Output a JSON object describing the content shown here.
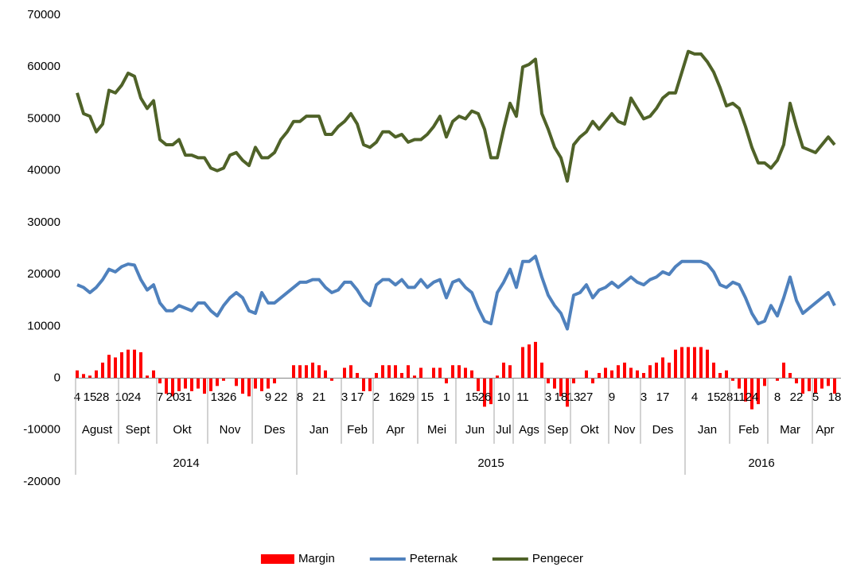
{
  "chart_data": {
    "type": "bar-line",
    "categories": [
      "4",
      null,
      "15",
      null,
      "28",
      null,
      null,
      "10",
      null,
      "24",
      null,
      null,
      null,
      "7",
      null,
      "20",
      null,
      "31",
      null,
      null,
      null,
      null,
      "13",
      null,
      "26",
      null,
      null,
      null,
      null,
      null,
      "9",
      null,
      "22",
      null,
      null,
      "8",
      null,
      null,
      "21",
      null,
      null,
      null,
      "3",
      null,
      "17",
      null,
      null,
      "2",
      null,
      null,
      "16",
      null,
      "29",
      null,
      null,
      "15",
      null,
      null,
      "1",
      null,
      null,
      null,
      "15",
      null,
      "26",
      null,
      null,
      "10",
      null,
      null,
      "11",
      null,
      null,
      null,
      "3",
      null,
      "18",
      null,
      "13",
      null,
      "27",
      null,
      null,
      null,
      "9",
      null,
      null,
      null,
      null,
      "3",
      null,
      null,
      "17",
      null,
      null,
      null,
      null,
      "4",
      null,
      null,
      "15",
      null,
      "28",
      null,
      "11",
      null,
      "24",
      null,
      null,
      null,
      "8",
      null,
      null,
      "22",
      null,
      null,
      "5",
      null,
      null,
      "18"
    ],
    "months": [
      "Agust",
      null,
      null,
      null,
      null,
      null,
      null,
      "Sept",
      null,
      null,
      null,
      null,
      null,
      "Okt",
      null,
      null,
      null,
      null,
      null,
      null,
      null,
      "Nov",
      null,
      null,
      null,
      null,
      null,
      null,
      "Des",
      null,
      null,
      null,
      null,
      null,
      null,
      "Jan",
      null,
      null,
      null,
      null,
      null,
      null,
      "Feb",
      null,
      null,
      null,
      null,
      "Apr",
      null,
      null,
      null,
      null,
      null,
      null,
      "Mei",
      null,
      null,
      null,
      null,
      null,
      "Jun",
      null,
      null,
      null,
      null,
      null,
      "Jul",
      null,
      null,
      "Ags",
      null,
      null,
      null,
      null,
      "Sep",
      null,
      null,
      null,
      "Okt",
      null,
      null,
      null,
      null,
      null,
      "Nov",
      null,
      null,
      null,
      null,
      "Des",
      null,
      null,
      null,
      null,
      null,
      null,
      "Jan",
      null,
      null,
      null,
      null,
      null,
      null,
      "Feb",
      null,
      null,
      null,
      null,
      null,
      "Mar",
      null,
      null,
      null,
      null,
      null,
      null,
      "Apr",
      null,
      null,
      null
    ],
    "years": [
      "2014",
      null,
      null,
      null,
      null,
      null,
      null,
      null,
      null,
      null,
      null,
      null,
      null,
      null,
      null,
      null,
      null,
      null,
      null,
      null,
      null,
      null,
      null,
      null,
      null,
      null,
      null,
      null,
      null,
      null,
      null,
      null,
      null,
      null,
      null,
      "2015",
      null,
      null,
      null,
      null,
      null,
      null,
      null,
      null,
      null,
      null,
      null,
      null,
      null,
      null,
      null,
      null,
      null,
      null,
      null,
      null,
      null,
      null,
      null,
      null,
      null,
      null,
      null,
      null,
      null,
      null,
      null,
      null,
      null,
      null,
      null,
      null,
      null,
      null,
      null,
      null,
      null,
      null,
      null,
      null,
      null,
      null,
      null,
      null,
      null,
      null,
      null,
      null,
      null,
      null,
      null,
      null,
      null,
      null,
      null,
      null,
      "2016",
      null,
      null,
      null,
      null,
      null,
      null,
      null,
      null,
      null,
      null,
      null,
      null,
      null,
      null,
      null,
      null,
      null,
      null,
      null,
      null,
      null,
      null,
      null
    ],
    "series": [
      {
        "name": "Margin",
        "type": "bar",
        "color": "#ff0000",
        "values": [
          1500,
          800,
          500,
          1500,
          3000,
          4500,
          4000,
          5000,
          5500,
          5500,
          5000,
          500,
          1500,
          -1000,
          -3000,
          -3500,
          -2500,
          -2000,
          -2500,
          -2000,
          -3000,
          -2500,
          -1500,
          -500,
          0,
          -1500,
          -3000,
          -3500,
          -2000,
          -2500,
          -2000,
          -1000,
          0,
          0,
          2500,
          2500,
          2500,
          3000,
          2500,
          1500,
          -500,
          0,
          2000,
          2500,
          1000,
          -2500,
          -2500,
          1000,
          2500,
          2500,
          2500,
          1000,
          2500,
          500,
          2000,
          0,
          2000,
          2000,
          -1000,
          2500,
          2500,
          2000,
          1500,
          -2500,
          -5500,
          -5000,
          500,
          3000,
          2500,
          0,
          6000,
          6500,
          7000,
          3000,
          -1000,
          -2000,
          -3500,
          -5500,
          -1000,
          0,
          1500,
          -1000,
          1000,
          2000,
          1500,
          2500,
          3000,
          2000,
          1500,
          1000,
          2500,
          3000,
          4000,
          3000,
          5500,
          6000,
          6000,
          6000,
          6000,
          5500,
          3000,
          1000,
          1500,
          -500,
          -2000,
          -4500,
          -6000,
          -5000,
          -1500,
          0,
          -500,
          3000,
          1000,
          -1000,
          -3000,
          -2500,
          -3000,
          -2000,
          -1500,
          -3000
        ]
      },
      {
        "name": "Peternak",
        "type": "line",
        "color": "#4f81bd",
        "values": [
          18000,
          17500,
          16500,
          17500,
          19000,
          21000,
          20500,
          21500,
          22000,
          21800,
          19000,
          17000,
          18000,
          14500,
          13000,
          13000,
          14000,
          13500,
          13000,
          14500,
          14500,
          13000,
          12000,
          14000,
          15500,
          16500,
          15500,
          13000,
          12500,
          16500,
          14500,
          14500,
          15500,
          16500,
          17500,
          18500,
          18500,
          19000,
          19000,
          17500,
          16500,
          17000,
          18500,
          18500,
          17000,
          15000,
          14000,
          18000,
          19000,
          19000,
          18000,
          19000,
          17500,
          17500,
          19000,
          17500,
          18500,
          19000,
          15500,
          18500,
          19000,
          17500,
          16500,
          13500,
          11000,
          10500,
          16500,
          18500,
          21000,
          17500,
          22500,
          22500,
          23500,
          19500,
          16000,
          14000,
          12500,
          9500,
          16000,
          16500,
          18000,
          15500,
          17000,
          17500,
          18500,
          17500,
          18500,
          19500,
          18500,
          18000,
          19000,
          19500,
          20500,
          20000,
          21500,
          22500,
          22500,
          22500,
          22500,
          22000,
          20500,
          18000,
          17500,
          18500,
          18000,
          15500,
          12500,
          10500,
          11000,
          14000,
          12000,
          15500,
          19500,
          15000,
          12500,
          13500,
          14500,
          15500,
          16500,
          14000
        ]
      },
      {
        "name": "Pengecer",
        "type": "line",
        "color": "#4f6228",
        "values": [
          55000,
          51000,
          50500,
          47500,
          49000,
          55500,
          55000,
          56500,
          58800,
          58200,
          54000,
          52000,
          53500,
          46000,
          45000,
          45000,
          46000,
          43000,
          43000,
          42500,
          42500,
          40500,
          40000,
          40500,
          43000,
          43500,
          42000,
          41000,
          44500,
          42500,
          42500,
          43500,
          46000,
          47500,
          49500,
          49500,
          50500,
          50500,
          50500,
          47000,
          47000,
          48500,
          49500,
          51000,
          49000,
          45000,
          44500,
          45500,
          47500,
          47500,
          46500,
          47000,
          45500,
          46000,
          46000,
          47000,
          48500,
          50500,
          46500,
          49500,
          50500,
          50000,
          51500,
          51000,
          48000,
          42500,
          42500,
          48000,
          53000,
          50500,
          60000,
          60500,
          61500,
          51000,
          48000,
          44500,
          42500,
          38000,
          45000,
          46500,
          47500,
          49500,
          48000,
          49500,
          51000,
          49500,
          49000,
          54000,
          52000,
          50000,
          50500,
          52000,
          54000,
          55000,
          55000,
          59000,
          63000,
          62500,
          62500,
          61000,
          59000,
          56000,
          52500,
          53000,
          52000,
          48500,
          44500,
          41500,
          41500,
          40500,
          42000,
          45000,
          53000,
          48500,
          44500,
          44000,
          43500,
          45000,
          46500,
          45000
        ]
      }
    ],
    "ylim": [
      -20000,
      70000
    ],
    "yticks": [
      -20000,
      -10000,
      0,
      10000,
      20000,
      30000,
      40000,
      50000,
      60000,
      70000
    ],
    "grid": false,
    "legend": "bottom"
  }
}
